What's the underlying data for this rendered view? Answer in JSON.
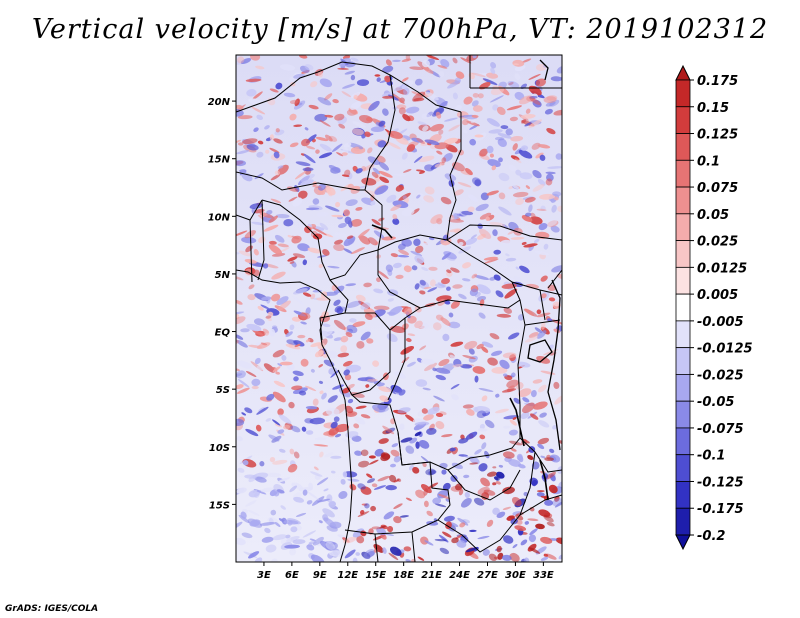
{
  "title": "Vertical velocity [m/s] at 700hPa, VT: 2019102312",
  "credit": "GrADS: IGES/COLA",
  "map": {
    "lon_range": [
      0,
      35
    ],
    "lat_range": [
      -20,
      24
    ],
    "xticks": [
      {
        "lon": 3,
        "label": "3E"
      },
      {
        "lon": 6,
        "label": "6E"
      },
      {
        "lon": 9,
        "label": "9E"
      },
      {
        "lon": 12,
        "label": "12E"
      },
      {
        "lon": 15,
        "label": "15E"
      },
      {
        "lon": 18,
        "label": "18E"
      },
      {
        "lon": 21,
        "label": "21E"
      },
      {
        "lon": 24,
        "label": "24E"
      },
      {
        "lon": 27,
        "label": "27E"
      },
      {
        "lon": 30,
        "label": "30E"
      },
      {
        "lon": 33,
        "label": "33E"
      }
    ],
    "yticks": [
      {
        "lat": 20,
        "label": "20N"
      },
      {
        "lat": 15,
        "label": "15N"
      },
      {
        "lat": 10,
        "label": "10N"
      },
      {
        "lat": 5,
        "label": "5N"
      },
      {
        "lat": 0,
        "label": "EQ"
      },
      {
        "lat": -5,
        "label": "5S"
      },
      {
        "lat": -10,
        "label": "10S"
      },
      {
        "lat": -15,
        "label": "15S"
      }
    ]
  },
  "colorbar": {
    "labels": [
      "0.175",
      "0.15",
      "0.125",
      "0.1",
      "0.075",
      "0.05",
      "0.025",
      "0.0125",
      "0.005",
      "-0.005",
      "-0.0125",
      "-0.025",
      "-0.05",
      "-0.075",
      "-0.1",
      "-0.125",
      "-0.175",
      "-0.2"
    ],
    "colors": [
      "#b01a1a",
      "#c42828",
      "#d23c3c",
      "#de5858",
      "#e67474",
      "#ee9090",
      "#f4acac",
      "#f8c6c6",
      "#fce2e2",
      "#ffffff",
      "#e2e2fa",
      "#c6c6f6",
      "#a8a8f0",
      "#8a8ae8",
      "#6c6cde",
      "#4e4ed2",
      "#3232c4",
      "#1e1eac",
      "#10109a"
    ]
  }
}
